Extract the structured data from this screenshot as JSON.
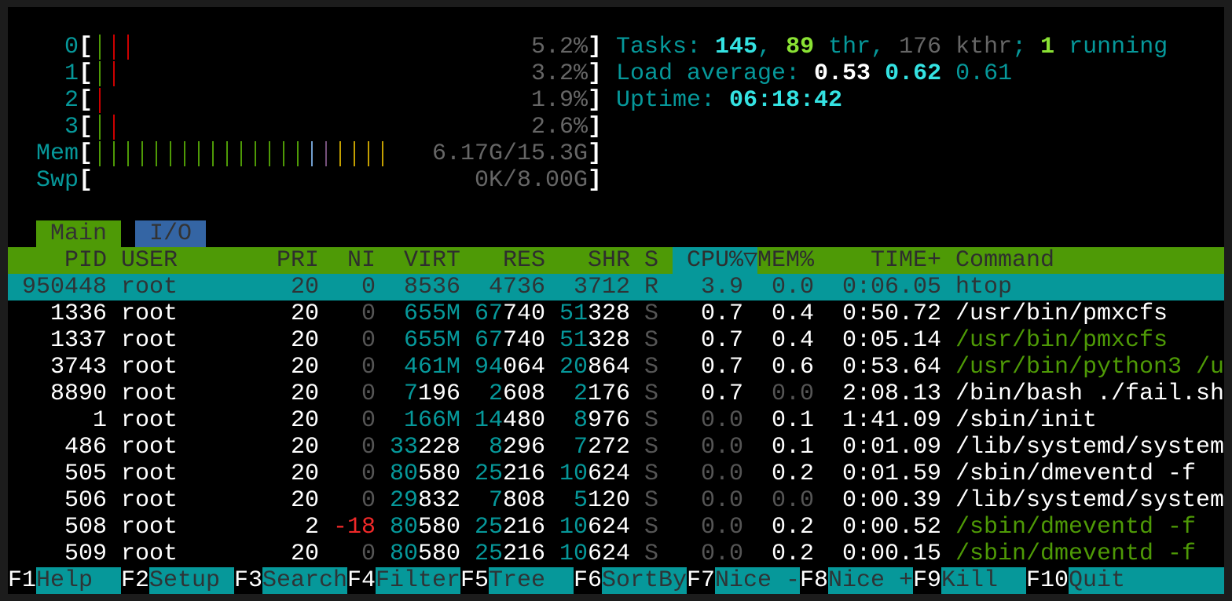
{
  "meters": {
    "cpus": [
      {
        "label": "0",
        "bars": [
          "normal",
          "kernel",
          "kernel"
        ],
        "value": "5.2%"
      },
      {
        "label": "1",
        "bars": [
          "normal",
          "kernel"
        ],
        "value": "3.2%"
      },
      {
        "label": "2",
        "bars": [
          "kernel"
        ],
        "value": "1.9%"
      },
      {
        "label": "3",
        "bars": [
          "normal",
          "kernel"
        ],
        "value": "2.6%"
      }
    ],
    "mem": {
      "label": "Mem",
      "bars": [
        "used",
        "used",
        "used",
        "used",
        "used",
        "used",
        "used",
        "used",
        "used",
        "used",
        "used",
        "used",
        "used",
        "used",
        "used",
        "buffers",
        "shared",
        "cache",
        "cache",
        "cache",
        "cache"
      ],
      "value": "6.17G/15.3G"
    },
    "swap": {
      "label": "Swp",
      "bars": [],
      "value": "0K/8.00G"
    }
  },
  "summary": {
    "tasks": {
      "label": "Tasks: ",
      "count": "145",
      "sep1": ", ",
      "threads": "89",
      "thr_label": " thr, ",
      "kthreads": "176 kthr",
      "sep2": "; ",
      "running": "1",
      "running_label": " running"
    },
    "load": {
      "label": "Load average: ",
      "one": "0.53",
      "five": "0.62",
      "fifteen": "0.61"
    },
    "uptime": {
      "label": "Uptime: ",
      "value": "06:18:42"
    }
  },
  "tabs": [
    {
      "label": "Main",
      "active": true
    },
    {
      "label": "I/O",
      "active": false
    }
  ],
  "columns": {
    "pid": "PID",
    "user": "USER",
    "pri": "PRI",
    "ni": "NI",
    "virt": "VIRT",
    "res": "RES",
    "shr": "SHR",
    "s": "S",
    "cpu": "CPU%",
    "sort_indicator": "▽",
    "mem": "MEM%",
    "time": "TIME+",
    "command": "Command"
  },
  "sort_column": "CPU%",
  "processes": [
    {
      "pid": "950448",
      "user": "root",
      "pri": "20",
      "ni": "0",
      "virt": "8536",
      "res": "4736",
      "shr": "3712",
      "s": "R",
      "cpu": "3.9",
      "mem": "0.0",
      "time": "0:06.05",
      "command": "htop",
      "selected": true,
      "is_thread": false
    },
    {
      "pid": "1336",
      "user": "root",
      "pri": "20",
      "ni": "0",
      "virt": "655M",
      "res": "67740",
      "shr": "51328",
      "s": "S",
      "cpu": "0.7",
      "mem": "0.4",
      "time": "0:50.72",
      "command": "/usr/bin/pmxcfs",
      "is_thread": false
    },
    {
      "pid": "1337",
      "user": "root",
      "pri": "20",
      "ni": "0",
      "virt": "655M",
      "res": "67740",
      "shr": "51328",
      "s": "S",
      "cpu": "0.7",
      "mem": "0.4",
      "time": "0:05.14",
      "command": "/usr/bin/pmxcfs",
      "is_thread": true
    },
    {
      "pid": "3743",
      "user": "root",
      "pri": "20",
      "ni": "0",
      "virt": "461M",
      "res": "94064",
      "shr": "20864",
      "s": "S",
      "cpu": "0.7",
      "mem": "0.6",
      "time": "0:53.64",
      "command": "/usr/bin/python3 /u",
      "is_thread": true
    },
    {
      "pid": "8890",
      "user": "root",
      "pri": "20",
      "ni": "0",
      "virt": "7196",
      "res": "2608",
      "shr": "2176",
      "s": "S",
      "cpu": "0.7",
      "mem": "0.0",
      "time": "2:08.13",
      "command": "/bin/bash ./fail.sh",
      "is_thread": false
    },
    {
      "pid": "1",
      "user": "root",
      "pri": "20",
      "ni": "0",
      "virt": "166M",
      "res": "14480",
      "shr": "8976",
      "s": "S",
      "cpu": "0.0",
      "mem": "0.1",
      "time": "1:41.09",
      "command": "/sbin/init",
      "is_thread": false
    },
    {
      "pid": "486",
      "user": "root",
      "pri": "20",
      "ni": "0",
      "virt": "33228",
      "res": "8296",
      "shr": "7272",
      "s": "S",
      "cpu": "0.0",
      "mem": "0.1",
      "time": "0:01.09",
      "command": "/lib/systemd/system",
      "is_thread": false
    },
    {
      "pid": "505",
      "user": "root",
      "pri": "20",
      "ni": "0",
      "virt": "80580",
      "res": "25216",
      "shr": "10624",
      "s": "S",
      "cpu": "0.0",
      "mem": "0.2",
      "time": "0:01.59",
      "command": "/sbin/dmeventd -f",
      "is_thread": false
    },
    {
      "pid": "506",
      "user": "root",
      "pri": "20",
      "ni": "0",
      "virt": "29832",
      "res": "7808",
      "shr": "5120",
      "s": "S",
      "cpu": "0.0",
      "mem": "0.0",
      "time": "0:00.39",
      "command": "/lib/systemd/system",
      "is_thread": false
    },
    {
      "pid": "508",
      "user": "root",
      "pri": "2",
      "ni": "-18",
      "virt": "80580",
      "res": "25216",
      "shr": "10624",
      "s": "S",
      "cpu": "0.0",
      "mem": "0.2",
      "time": "0:00.52",
      "command": "/sbin/dmeventd -f",
      "is_thread": true
    },
    {
      "pid": "509",
      "user": "root",
      "pri": "20",
      "ni": "0",
      "virt": "80580",
      "res": "25216",
      "shr": "10624",
      "s": "S",
      "cpu": "0.0",
      "mem": "0.2",
      "time": "0:00.15",
      "command": "/sbin/dmeventd -f",
      "is_thread": true
    }
  ],
  "footer": [
    {
      "key": "F1",
      "label": "Help"
    },
    {
      "key": "F2",
      "label": "Setup"
    },
    {
      "key": "F3",
      "label": "Search"
    },
    {
      "key": "F4",
      "label": "Filter"
    },
    {
      "key": "F5",
      "label": "Tree"
    },
    {
      "key": "F6",
      "label": "SortBy"
    },
    {
      "key": "F7",
      "label": "Nice -"
    },
    {
      "key": "F8",
      "label": "Nice +"
    },
    {
      "key": "F9",
      "label": "Kill"
    },
    {
      "key": "F10",
      "label": "Quit"
    }
  ],
  "colors": {
    "header_bg": "#4e9a06",
    "selection_bg": "#06989a",
    "cyan": "#06989a",
    "bright_cyan": "#34e2e2",
    "bright_green": "#8ae234",
    "kernel_bar": "#cc0000",
    "buffers_bar": "#729fcf",
    "shared_bar": "#75507b",
    "cache_bar": "#c4a000"
  }
}
